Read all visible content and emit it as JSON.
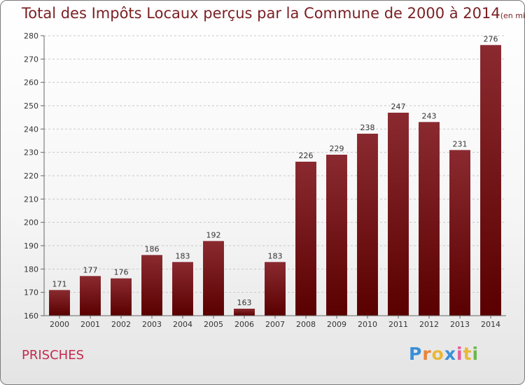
{
  "header": {
    "title": "Total des Impôts Locaux perçus par la Commune de 2000 à 2014",
    "unit": "(en milliers d'€)"
  },
  "footer": {
    "commune": "PRISCHES",
    "logo_letters": [
      "P",
      "r",
      "o",
      "x",
      "i",
      "t",
      "i"
    ],
    "logo_colors": [
      "#3a8fd8",
      "#e8843a",
      "#e8b83a",
      "#3a8fd8",
      "#e85a9a",
      "#e8b83a",
      "#6ab84a"
    ]
  },
  "colors": {
    "bar_top": "#8a2a30",
    "bar_bottom": "#5a0000",
    "title": "#7a1f22",
    "commune": "#c42a4e"
  },
  "chart_data": {
    "type": "bar",
    "title": "Total des Impôts Locaux perçus par la Commune de 2000 à 2014",
    "subtitle": "(en milliers d'€)",
    "xlabel": "",
    "ylabel": "",
    "categories": [
      "2000",
      "2001",
      "2002",
      "2003",
      "2004",
      "2005",
      "2006",
      "2007",
      "2008",
      "2009",
      "2010",
      "2011",
      "2012",
      "2013",
      "2014"
    ],
    "values": [
      171,
      177,
      176,
      186,
      183,
      192,
      163,
      183,
      226,
      229,
      238,
      247,
      243,
      231,
      276
    ],
    "ylim": [
      160,
      280
    ],
    "yticks": [
      160,
      170,
      180,
      190,
      200,
      210,
      220,
      230,
      240,
      250,
      260,
      270,
      280
    ],
    "grid": true,
    "data_labels": true
  }
}
